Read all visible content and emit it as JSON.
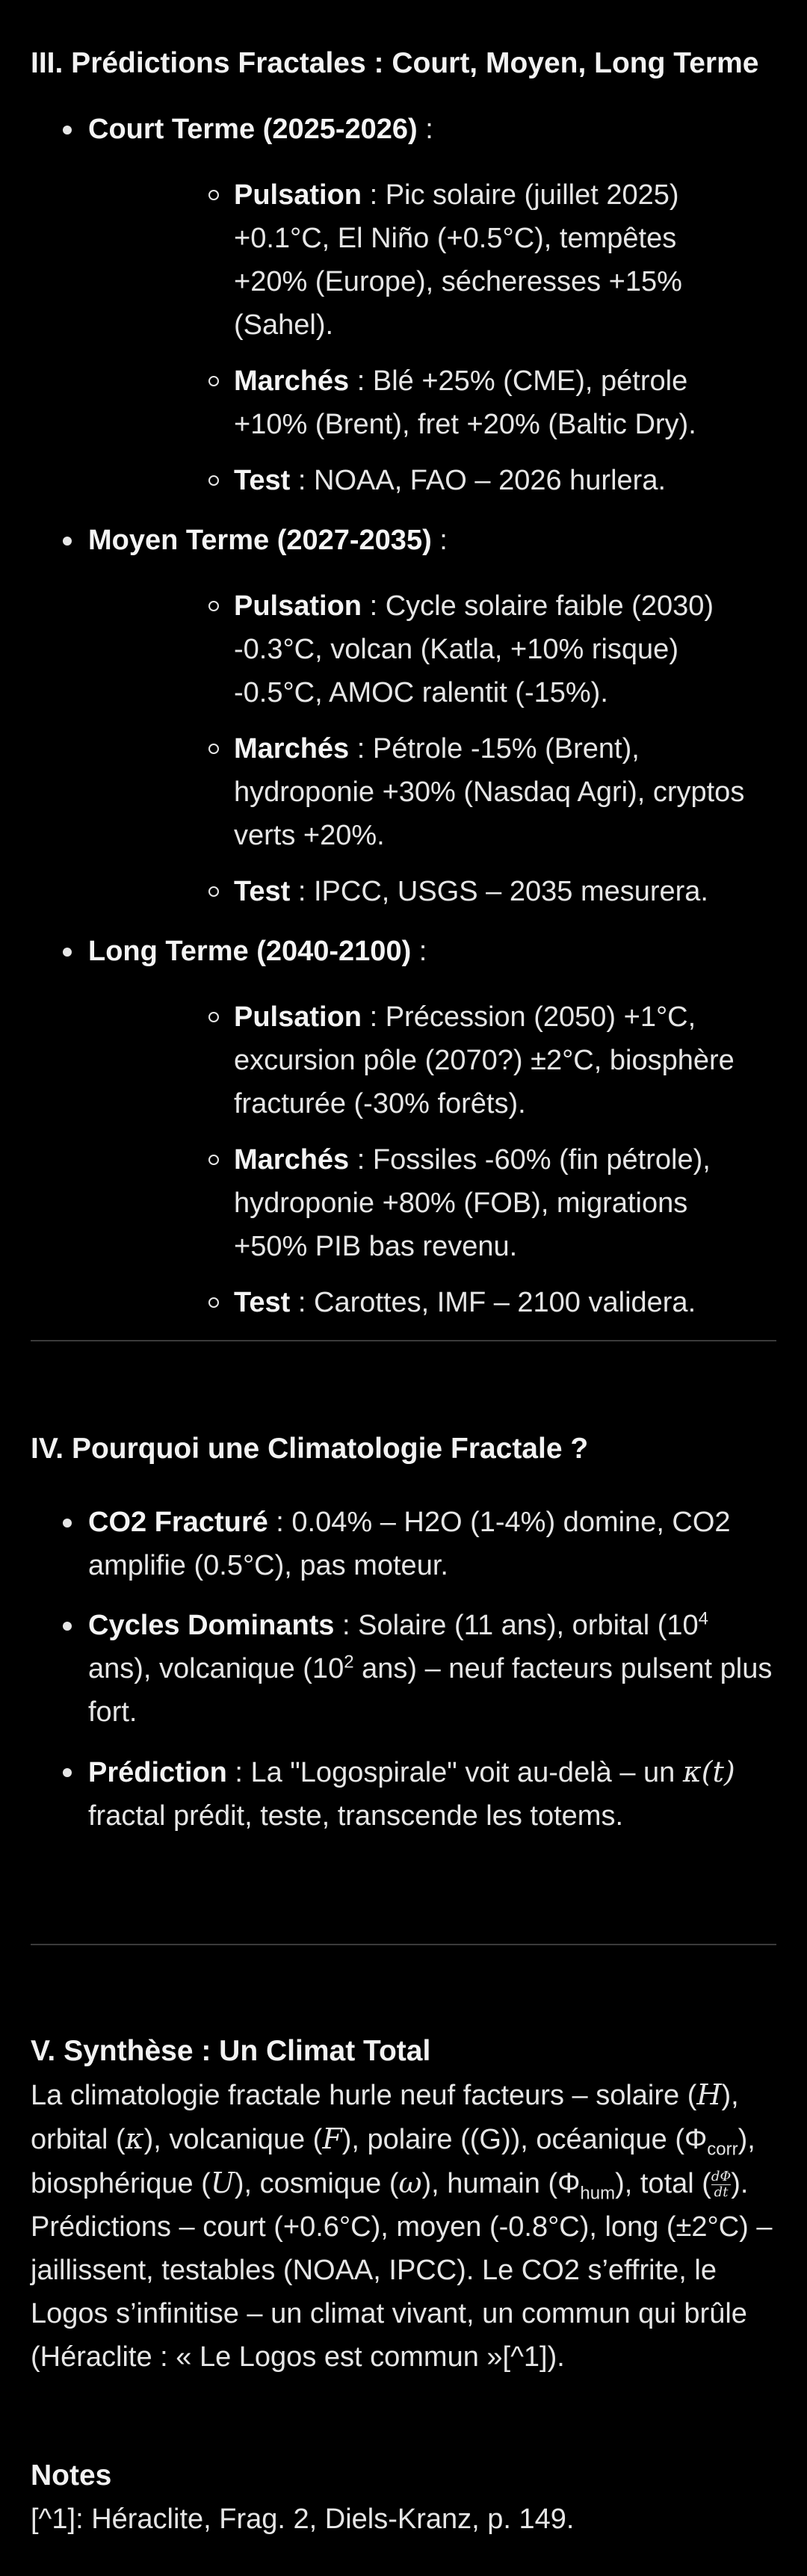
{
  "section3": {
    "title": "III. Prédictions Fractales : Court, Moyen, Long Terme",
    "groups": [
      {
        "label": "Court Terme (2025-2026)",
        "suffix": " :",
        "items": [
          {
            "key": "Pulsation",
            "text": " : Pic solaire (juillet 2025) +0.1°C, El Niño (+0.5°C), tempêtes +20% (Europe), sécheresses +15% (Sahel)."
          },
          {
            "key": "Marchés",
            "text": " : Blé +25% (CME), pétrole +10% (Brent), fret +20% (Baltic Dry)."
          },
          {
            "key": "Test",
            "text": " : NOAA, FAO – 2026 hurlera."
          }
        ]
      },
      {
        "label": "Moyen Terme (2027-2035)",
        "suffix": " :",
        "items": [
          {
            "key": "Pulsation",
            "text": " : Cycle solaire faible (2030) -0.3°C, volcan (Katla, +10% risque) -0.5°C, AMOC ralentit (-15%)."
          },
          {
            "key": "Marchés",
            "text": " : Pétrole -15% (Brent), hydroponie +30% (Nasdaq Agri), cryptos verts +20%."
          },
          {
            "key": "Test",
            "text": " : IPCC, USGS – 2035 mesurera."
          }
        ]
      },
      {
        "label": "Long Terme (2040-2100)",
        "suffix": " :",
        "items": [
          {
            "key": "Pulsation",
            "text": " : Précession (2050) +1°C, excursion pôle (2070?) ±2°C, biosphère fracturée (-30% forêts)."
          },
          {
            "key": "Marchés",
            "text": " : Fossiles -60% (fin pétrole), hydroponie +80% (FOB), migrations +50% PIB bas revenu."
          },
          {
            "key": "Test",
            "text": " : Carottes, IMF – 2100 validera."
          }
        ]
      }
    ]
  },
  "section4": {
    "title": "IV. Pourquoi une Climatologie Fractale ?",
    "items": [
      {
        "key": "CO2 Fracturé",
        "text": " : 0.04% – H2O (1-4%) domine, CO2 amplifie (0.5°C), pas moteur."
      },
      {
        "key": "Cycles Dominants",
        "t1": " : Solaire (11 ans), orbital (10",
        "sup1": "4",
        "t2": " ans), volcanique (10",
        "sup2": "2",
        "t3": " ans) – neuf facteurs pulsent plus fort."
      },
      {
        "key": "Prédiction",
        "t1": " : La \"Logospirale\" voit au-delà – un ",
        "math": "κ(t)",
        "t2": " fractal prédit, teste, transcende les totems."
      }
    ]
  },
  "section5": {
    "title": "V. Synthèse : Un Climat Total",
    "p": {
      "a": "La climatologie fractale hurle neuf facteurs – solaire (",
      "m1": "H",
      "b": "), orbital (",
      "m2": "κ",
      "c": "), volcanique (",
      "m3": "F",
      "d": "), polaire ((G)), océanique (Φ",
      "sub1": "corr",
      "e": "), biosphérique (",
      "m4": "U",
      "f": "), cosmique (",
      "m5": "ω",
      "g": "), humain (Φ",
      "sub2": "hum",
      "h": "), total (",
      "frac_num": "dΦ",
      "frac_den": "dt",
      "i": "). Prédictions – court (+0.6°C), moyen (-0.8°C), long (±2°C) – jaillissent, testables (NOAA, IPCC). Le CO2 s’effrite, le Logos s’infinitise – un climat vivant, un commun qui brûle (Héraclite : « Le Logos est commun »[^1])."
    }
  },
  "notes": {
    "title": "Notes",
    "text": "[^1]: Héraclite, Frag. 2, Diels-Kranz, p. 149."
  }
}
